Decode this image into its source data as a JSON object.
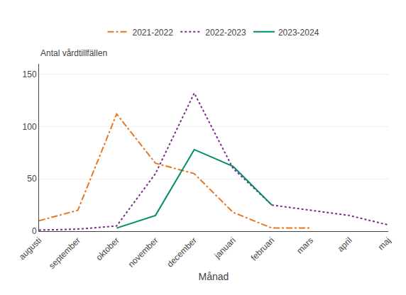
{
  "chart_data": {
    "type": "line",
    "categories": [
      "augusti",
      "september",
      "oktober",
      "november",
      "december",
      "januari",
      "februari",
      "mars",
      "april",
      "maj"
    ],
    "series": [
      {
        "name": "2021-2022",
        "color": "#E87722",
        "line_style": "dashdot",
        "values": [
          10,
          20,
          112,
          65,
          55,
          18,
          3,
          3,
          null,
          null
        ]
      },
      {
        "name": "2022-2023",
        "color": "#7B2D8B",
        "line_style": "dotted",
        "values": [
          1,
          2,
          5,
          55,
          132,
          60,
          25,
          20,
          15,
          6
        ]
      },
      {
        "name": "2023-2024",
        "color": "#008B6E",
        "line_style": "solid",
        "values": [
          null,
          null,
          3,
          15,
          78,
          62,
          25,
          null,
          null,
          null
        ]
      }
    ],
    "xlabel": "Månad",
    "ylabel": "Antal vårdtillfällen",
    "ylim": [
      0,
      160
    ],
    "yticks": [
      0,
      50,
      100,
      150
    ],
    "grid": true,
    "legend": "top"
  }
}
